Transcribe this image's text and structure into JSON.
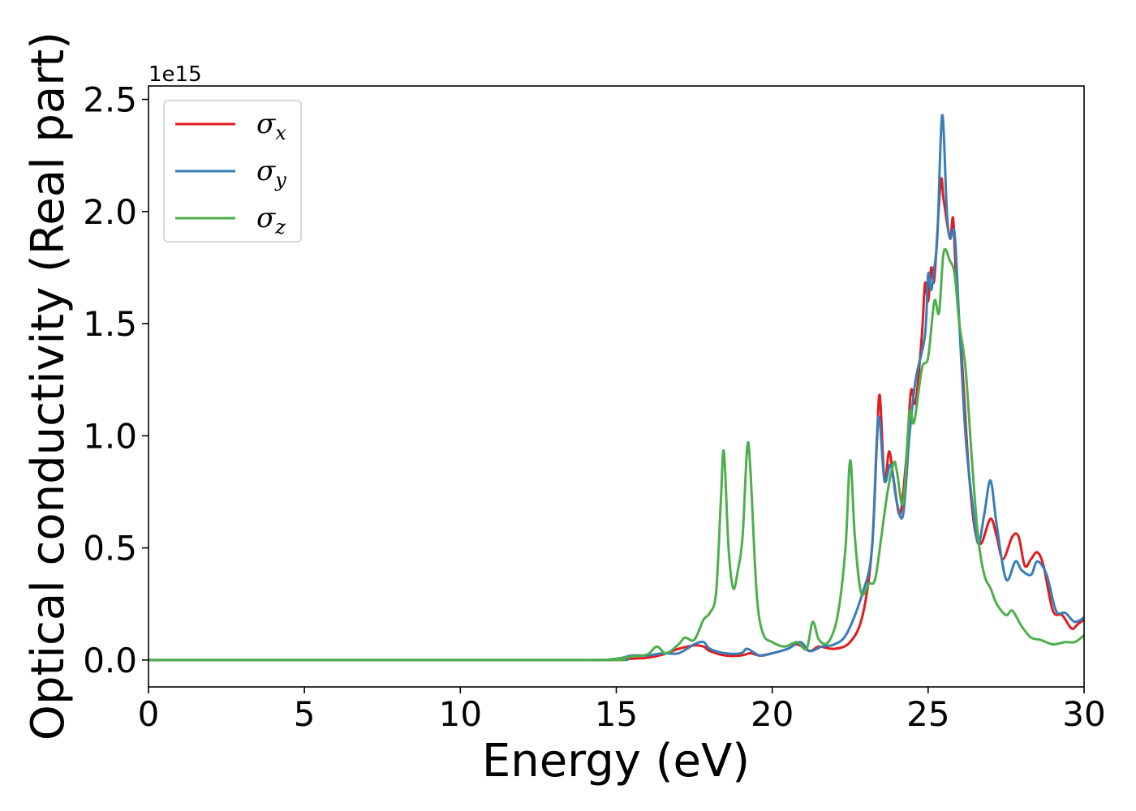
{
  "chart_data": {
    "type": "line",
    "xlabel": "Energy (eV)",
    "ylabel": "Optical conductivity (Real part)",
    "y_offset_text": "1e15",
    "y_scale": 1000000000000000.0,
    "xlim": [
      0,
      30
    ],
    "ylim": [
      -0.12,
      2.56
    ],
    "x_ticks": [
      0,
      5,
      10,
      15,
      20,
      25,
      30
    ],
    "x_tick_labels": [
      "0",
      "5",
      "10",
      "15",
      "20",
      "25",
      "30"
    ],
    "y_ticks": [
      0.0,
      0.5,
      1.0,
      1.5,
      2.0,
      2.5
    ],
    "y_tick_labels": [
      "0.0",
      "0.5",
      "1.0",
      "1.5",
      "2.0",
      "2.5"
    ],
    "grid": false,
    "legend_position": "top-left",
    "series": [
      {
        "name": "σ_x",
        "legend_base": "σ",
        "legend_sub": "x",
        "color": "#e41a1c",
        "points": [
          [
            0,
            0
          ],
          [
            14,
            0
          ],
          [
            15,
            0.003
          ],
          [
            16,
            0.01
          ],
          [
            16.5,
            0.025
          ],
          [
            17,
            0.05
          ],
          [
            17.5,
            0.065
          ],
          [
            17.8,
            0.06
          ],
          [
            18,
            0.04
          ],
          [
            18.5,
            0.02
          ],
          [
            19,
            0.02
          ],
          [
            19.3,
            0.03
          ],
          [
            19.6,
            0.02
          ],
          [
            20,
            0.03
          ],
          [
            20.5,
            0.05
          ],
          [
            20.8,
            0.07
          ],
          [
            21.2,
            0.04
          ],
          [
            21.5,
            0.06
          ],
          [
            22,
            0.05
          ],
          [
            22.5,
            0.08
          ],
          [
            22.9,
            0.2
          ],
          [
            23.2,
            0.5
          ],
          [
            23.35,
            0.95
          ],
          [
            23.45,
            1.18
          ],
          [
            23.6,
            0.8
          ],
          [
            23.75,
            0.93
          ],
          [
            23.9,
            0.8
          ],
          [
            24.1,
            0.65
          ],
          [
            24.3,
            0.9
          ],
          [
            24.45,
            1.2
          ],
          [
            24.6,
            1.15
          ],
          [
            24.8,
            1.45
          ],
          [
            24.9,
            1.68
          ],
          [
            25.0,
            1.6
          ],
          [
            25.1,
            1.75
          ],
          [
            25.2,
            1.7
          ],
          [
            25.4,
            2.13
          ],
          [
            25.5,
            2.05
          ],
          [
            25.7,
            1.88
          ],
          [
            25.8,
            1.97
          ],
          [
            25.9,
            1.7
          ],
          [
            26.1,
            1.3
          ],
          [
            26.3,
            0.85
          ],
          [
            26.5,
            0.58
          ],
          [
            26.7,
            0.52
          ],
          [
            27.0,
            0.63
          ],
          [
            27.2,
            0.55
          ],
          [
            27.4,
            0.45
          ],
          [
            27.7,
            0.55
          ],
          [
            27.9,
            0.55
          ],
          [
            28.1,
            0.42
          ],
          [
            28.3,
            0.45
          ],
          [
            28.5,
            0.48
          ],
          [
            28.7,
            0.42
          ],
          [
            29.0,
            0.22
          ],
          [
            29.3,
            0.2
          ],
          [
            29.6,
            0.14
          ],
          [
            29.8,
            0.16
          ],
          [
            30,
            0.18
          ]
        ]
      },
      {
        "name": "σ_y",
        "legend_base": "σ",
        "legend_sub": "y",
        "color": "#377eb8",
        "points": [
          [
            0,
            0
          ],
          [
            14,
            0
          ],
          [
            15,
            0.005
          ],
          [
            15.5,
            0.02
          ],
          [
            16,
            0.02
          ],
          [
            16.5,
            0.03
          ],
          [
            17,
            0.03
          ],
          [
            17.5,
            0.07
          ],
          [
            17.8,
            0.08
          ],
          [
            18,
            0.05
          ],
          [
            18.5,
            0.03
          ],
          [
            19,
            0.03
          ],
          [
            19.2,
            0.05
          ],
          [
            19.6,
            0.02
          ],
          [
            20,
            0.03
          ],
          [
            20.5,
            0.05
          ],
          [
            20.9,
            0.08
          ],
          [
            21.2,
            0.04
          ],
          [
            21.6,
            0.06
          ],
          [
            22.0,
            0.07
          ],
          [
            22.4,
            0.12
          ],
          [
            22.9,
            0.3
          ],
          [
            23.2,
            0.5
          ],
          [
            23.4,
            1.08
          ],
          [
            23.6,
            0.8
          ],
          [
            23.8,
            0.87
          ],
          [
            24.0,
            0.7
          ],
          [
            24.2,
            0.65
          ],
          [
            24.4,
            1.0
          ],
          [
            24.6,
            1.25
          ],
          [
            24.9,
            1.45
          ],
          [
            25.0,
            1.72
          ],
          [
            25.1,
            1.65
          ],
          [
            25.2,
            1.75
          ],
          [
            25.3,
            1.9
          ],
          [
            25.45,
            2.43
          ],
          [
            25.6,
            2.0
          ],
          [
            25.7,
            1.88
          ],
          [
            25.85,
            1.9
          ],
          [
            26.0,
            1.5
          ],
          [
            26.2,
            1.0
          ],
          [
            26.4,
            0.72
          ],
          [
            26.6,
            0.52
          ],
          [
            26.8,
            0.65
          ],
          [
            27.0,
            0.8
          ],
          [
            27.2,
            0.6
          ],
          [
            27.5,
            0.36
          ],
          [
            27.8,
            0.44
          ],
          [
            28.0,
            0.4
          ],
          [
            28.3,
            0.38
          ],
          [
            28.5,
            0.44
          ],
          [
            28.8,
            0.38
          ],
          [
            29.1,
            0.22
          ],
          [
            29.4,
            0.21
          ],
          [
            29.7,
            0.17
          ],
          [
            30,
            0.19
          ]
        ]
      },
      {
        "name": "σ_z",
        "legend_base": "σ",
        "legend_sub": "z",
        "color": "#4daf4a",
        "points": [
          [
            0,
            0
          ],
          [
            14,
            0
          ],
          [
            14.8,
            0.003
          ],
          [
            15.5,
            0.015
          ],
          [
            16,
            0.025
          ],
          [
            16.3,
            0.06
          ],
          [
            16.6,
            0.03
          ],
          [
            17.0,
            0.07
          ],
          [
            17.2,
            0.1
          ],
          [
            17.5,
            0.09
          ],
          [
            17.8,
            0.18
          ],
          [
            18.0,
            0.21
          ],
          [
            18.2,
            0.3
          ],
          [
            18.35,
            0.7
          ],
          [
            18.45,
            0.93
          ],
          [
            18.6,
            0.5
          ],
          [
            18.75,
            0.32
          ],
          [
            18.9,
            0.4
          ],
          [
            19.05,
            0.55
          ],
          [
            19.2,
            0.95
          ],
          [
            19.3,
            0.85
          ],
          [
            19.5,
            0.3
          ],
          [
            19.7,
            0.12
          ],
          [
            20.0,
            0.08
          ],
          [
            20.4,
            0.06
          ],
          [
            20.8,
            0.08
          ],
          [
            21.1,
            0.05
          ],
          [
            21.3,
            0.17
          ],
          [
            21.5,
            0.09
          ],
          [
            21.8,
            0.08
          ],
          [
            22.1,
            0.2
          ],
          [
            22.35,
            0.5
          ],
          [
            22.5,
            0.89
          ],
          [
            22.65,
            0.55
          ],
          [
            22.85,
            0.3
          ],
          [
            23.1,
            0.34
          ],
          [
            23.3,
            0.36
          ],
          [
            23.5,
            0.55
          ],
          [
            23.7,
            0.75
          ],
          [
            23.9,
            0.88
          ],
          [
            24.0,
            0.84
          ],
          [
            24.2,
            0.7
          ],
          [
            24.4,
            1.1
          ],
          [
            24.55,
            1.06
          ],
          [
            24.8,
            1.3
          ],
          [
            25.0,
            1.35
          ],
          [
            25.2,
            1.6
          ],
          [
            25.35,
            1.55
          ],
          [
            25.5,
            1.82
          ],
          [
            25.7,
            1.78
          ],
          [
            25.85,
            1.72
          ],
          [
            26.0,
            1.5
          ],
          [
            26.2,
            1.3
          ],
          [
            26.4,
            0.9
          ],
          [
            26.6,
            0.55
          ],
          [
            26.8,
            0.38
          ],
          [
            27.0,
            0.32
          ],
          [
            27.2,
            0.25
          ],
          [
            27.5,
            0.2
          ],
          [
            27.7,
            0.22
          ],
          [
            28.0,
            0.15
          ],
          [
            28.3,
            0.1
          ],
          [
            28.6,
            0.09
          ],
          [
            29.0,
            0.07
          ],
          [
            29.4,
            0.08
          ],
          [
            29.7,
            0.08
          ],
          [
            30,
            0.11
          ]
        ]
      }
    ]
  }
}
